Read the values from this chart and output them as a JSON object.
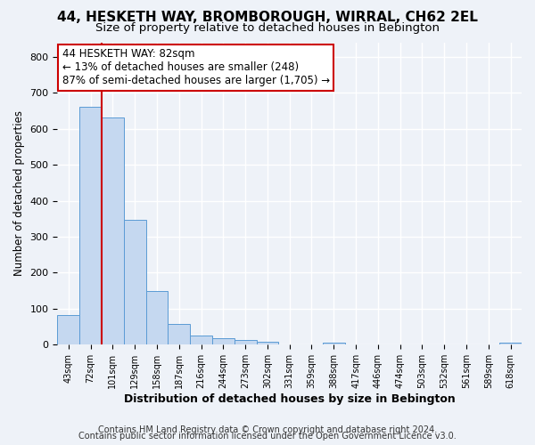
{
  "title": "44, HESKETH WAY, BROMBOROUGH, WIRRAL, CH62 2EL",
  "subtitle": "Size of property relative to detached houses in Bebington",
  "xlabel": "Distribution of detached houses by size in Bebington",
  "ylabel": "Number of detached properties",
  "bar_color": "#c5d8f0",
  "bar_edge_color": "#5b9bd5",
  "bin_labels": [
    "43sqm",
    "72sqm",
    "101sqm",
    "129sqm",
    "158sqm",
    "187sqm",
    "216sqm",
    "244sqm",
    "273sqm",
    "302sqm",
    "331sqm",
    "359sqm",
    "388sqm",
    "417sqm",
    "446sqm",
    "474sqm",
    "503sqm",
    "532sqm",
    "561sqm",
    "589sqm",
    "618sqm"
  ],
  "bar_heights": [
    82,
    660,
    630,
    348,
    148,
    58,
    26,
    18,
    13,
    8,
    0,
    0,
    7,
    0,
    0,
    0,
    0,
    0,
    0,
    0,
    7
  ],
  "ylim": [
    0,
    840
  ],
  "yticks": [
    0,
    100,
    200,
    300,
    400,
    500,
    600,
    700,
    800
  ],
  "vline_color": "#cc0000",
  "vline_x_idx": 1,
  "annotation_text": "44 HESKETH WAY: 82sqm\n← 13% of detached houses are smaller (248)\n87% of semi-detached houses are larger (1,705) →",
  "annotation_box_color": "#ffffff",
  "annotation_box_edge": "#cc0000",
  "footer1": "Contains HM Land Registry data © Crown copyright and database right 2024.",
  "footer2": "Contains public sector information licensed under the Open Government Licence v3.0.",
  "background_color": "#eef2f8",
  "plot_bg_color": "#eef2f8",
  "grid_color": "#ffffff",
  "title_fontsize": 11,
  "subtitle_fontsize": 9.5,
  "annotation_fontsize": 8.5,
  "footer_fontsize": 7,
  "ylabel_fontsize": 8.5,
  "xlabel_fontsize": 9
}
